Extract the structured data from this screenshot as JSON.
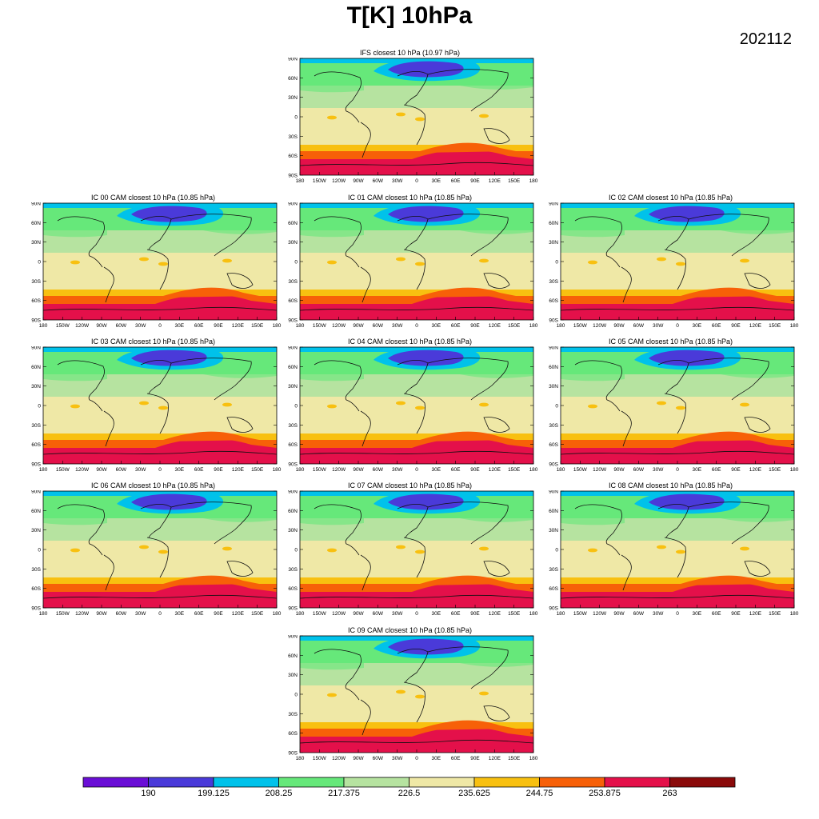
{
  "title": "T[K] 10hPa",
  "date": "202112",
  "panels": [
    {
      "title": "IFS closest 10 hPa (10.97 hPa)"
    },
    {
      "title": "IC 00 CAM closest 10 hPa (10.85 hPa)"
    },
    {
      "title": "IC 01 CAM closest 10 hPa (10.85 hPa)"
    },
    {
      "title": "IC 02 CAM closest 10 hPa (10.85 hPa)"
    },
    {
      "title": "IC 03 CAM closest 10 hPa (10.85 hPa)"
    },
    {
      "title": "IC 04 CAM closest 10 hPa (10.85 hPa)"
    },
    {
      "title": "IC 05 CAM closest 10 hPa (10.85 hPa)"
    },
    {
      "title": "IC 06 CAM closest 10 hPa (10.85 hPa)"
    },
    {
      "title": "IC 07 CAM closest 10 hPa (10.85 hPa)"
    },
    {
      "title": "IC 08 CAM closest 10 hPa (10.85 hPa)"
    },
    {
      "title": "IC 09 CAM closest 10 hPa (10.85 hPa)"
    }
  ],
  "lat_labels": [
    "90N",
    "60N",
    "30N",
    "0",
    "30S",
    "60S",
    "90S"
  ],
  "lon_labels": [
    "180",
    "150W",
    "120W",
    "90W",
    "60W",
    "30W",
    "0",
    "30E",
    "60E",
    "90E",
    "120E",
    "150E",
    "180"
  ],
  "colorbar": {
    "colors": [
      "#6a0ed6",
      "#4a3ad9",
      "#00c2ea",
      "#66e87a",
      "#b6e3a0",
      "#efe8a6",
      "#f8c010",
      "#f76008",
      "#e4104a",
      "#8a0a0a"
    ],
    "labels": [
      "190",
      "199.125",
      "208.25",
      "217.375",
      "226.5",
      "235.625",
      "244.75",
      "253.875",
      "263"
    ]
  }
}
